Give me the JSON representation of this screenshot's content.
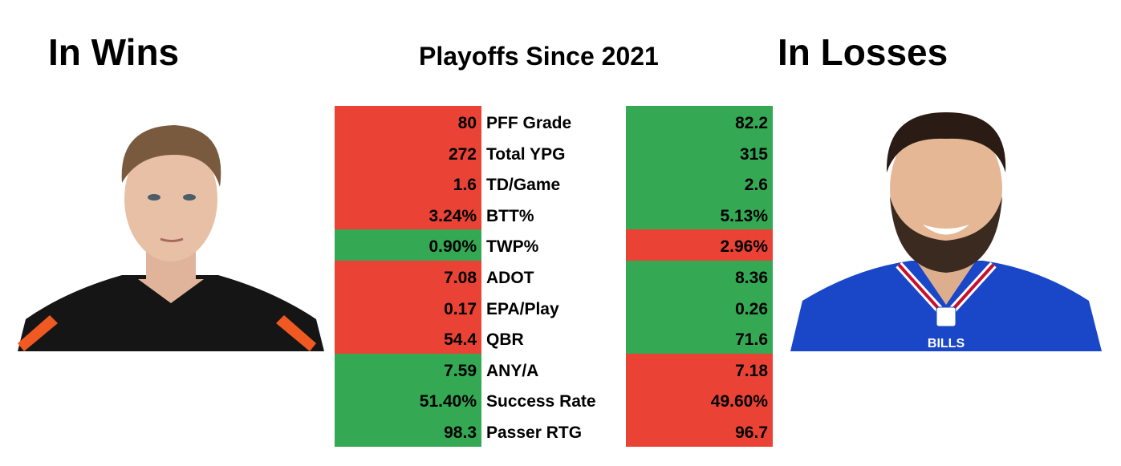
{
  "header": {
    "left_title": "In Wins",
    "center_title": "Playoffs Since 2021",
    "right_title": "In Losses"
  },
  "table": {
    "rows": [
      {
        "left": "80",
        "label": "PFF Grade",
        "right": "82.2",
        "left_color": "#ea4335",
        "right_color": "#34a853"
      },
      {
        "left": "272",
        "label": "Total YPG",
        "right": "315",
        "left_color": "#ea4335",
        "right_color": "#34a853"
      },
      {
        "left": "1.6",
        "label": "TD/Game",
        "right": "2.6",
        "left_color": "#ea4335",
        "right_color": "#34a853"
      },
      {
        "left": "3.24%",
        "label": "BTT%",
        "right": "5.13%",
        "left_color": "#ea4335",
        "right_color": "#34a853"
      },
      {
        "left": "0.90%",
        "label": "TWP%",
        "right": "2.96%",
        "left_color": "#34a853",
        "right_color": "#ea4335"
      },
      {
        "left": "7.08",
        "label": "ADOT",
        "right": "8.36",
        "left_color": "#ea4335",
        "right_color": "#34a853"
      },
      {
        "left": "0.17",
        "label": "EPA/Play",
        "right": "0.26",
        "left_color": "#ea4335",
        "right_color": "#34a853"
      },
      {
        "left": "54.4",
        "label": "QBR",
        "right": "71.6",
        "left_color": "#ea4335",
        "right_color": "#34a853"
      },
      {
        "left": "7.59",
        "label": "ANY/A",
        "right": "7.18",
        "left_color": "#34a853",
        "right_color": "#ea4335"
      },
      {
        "left": "51.40%",
        "label": "Success Rate",
        "right": "49.60%",
        "left_color": "#34a853",
        "right_color": "#ea4335"
      },
      {
        "left": "98.3",
        "label": "Passer RTG",
        "right": "96.7",
        "left_color": "#34a853",
        "right_color": "#ea4335"
      }
    ]
  },
  "right_image": {
    "jersey_text": "BILLS"
  }
}
